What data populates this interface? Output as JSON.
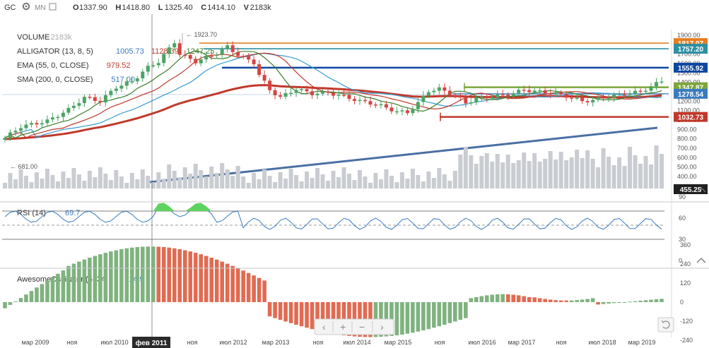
{
  "header": {
    "symbol": "GC",
    "period": "MN",
    "ohlcv": [
      {
        "k": "O",
        "v": "1337.90"
      },
      {
        "k": "H",
        "v": "1418.80"
      },
      {
        "k": "L",
        "v": "1325.40"
      },
      {
        "k": "C",
        "v": "1414.10"
      },
      {
        "k": "V",
        "v": "2183k"
      }
    ]
  },
  "legend": [
    {
      "name": "VOLUME",
      "values": [
        "2183k"
      ],
      "colors": [
        "#aaaaaa"
      ]
    },
    {
      "name": "ALLIGATOR (13, 8, 5)",
      "values": [
        "1005.73",
        "1128.39",
        "1247.25"
      ],
      "colors": [
        "#3a7bbf",
        "#c0392b",
        "#3a7d2a"
      ]
    },
    {
      "name": "EMA (55, 0, CLOSE)",
      "values": [
        "979.52"
      ],
      "colors": [
        "#c0392b"
      ]
    },
    {
      "name": "SMA (200, 0, CLOSE)",
      "values": [
        "517.00"
      ],
      "colors": [
        "#3a7bbf"
      ]
    }
  ],
  "chart_data": {
    "type": "candlestick",
    "price_axis_ticks": [
      "1900.00",
      "1800.00",
      "1700.00",
      "1600.00",
      "1500.00",
      "1400.00",
      "1300.00",
      "1200.00",
      "1100.00",
      "1000.00",
      "900.00",
      "800.00",
      "700.00",
      "600.00",
      "500.00",
      "400.00"
    ],
    "time_labels": [
      "мар 2009",
      "ноя",
      "июл 2010",
      "фев 2011",
      "ноя",
      "июл 2012",
      "мар 2013",
      "ноя",
      "июл 2014",
      "мар 2015",
      "ноя",
      "июл 2016",
      "мар 2017",
      "ноя",
      "июл 2018",
      "мар 2019"
    ],
    "crosshair_time": "фев 2011",
    "annotations": {
      "high": "1923.70",
      "low": "681.00"
    },
    "price_badges": [
      {
        "label": "1817.07",
        "color": "#e67e22",
        "price": 1817.07
      },
      {
        "label": "1757.20",
        "color": "#2e8fa3",
        "price": 1757.2
      },
      {
        "label": "1555.92",
        "color": "#0d47a1",
        "price": 1555.92
      },
      {
        "label": "1347.87",
        "color": "#7ca63a",
        "price": 1347.87
      },
      {
        "label": "1278.54",
        "color": "#3a7bbf",
        "price": 1278.54
      },
      {
        "label": "1032.73",
        "color": "#c0392b",
        "price": 1032.73
      }
    ],
    "volume_badge": "455.25",
    "rsi": {
      "label": "RSI (14)",
      "value": "69.7",
      "ticks": [
        "90",
        "60",
        "30",
        "0"
      ],
      "levels": [
        70,
        30
      ]
    },
    "ao": {
      "label": "AwesomeOscillator (5, 34)",
      "value": "314.9",
      "ticks": [
        "360",
        "240",
        "120",
        "0",
        "-120",
        "-240"
      ]
    }
  },
  "toolbar": {
    "zoom_in": "+",
    "zoom_out": "−",
    "prev": "‹",
    "next": "›"
  }
}
